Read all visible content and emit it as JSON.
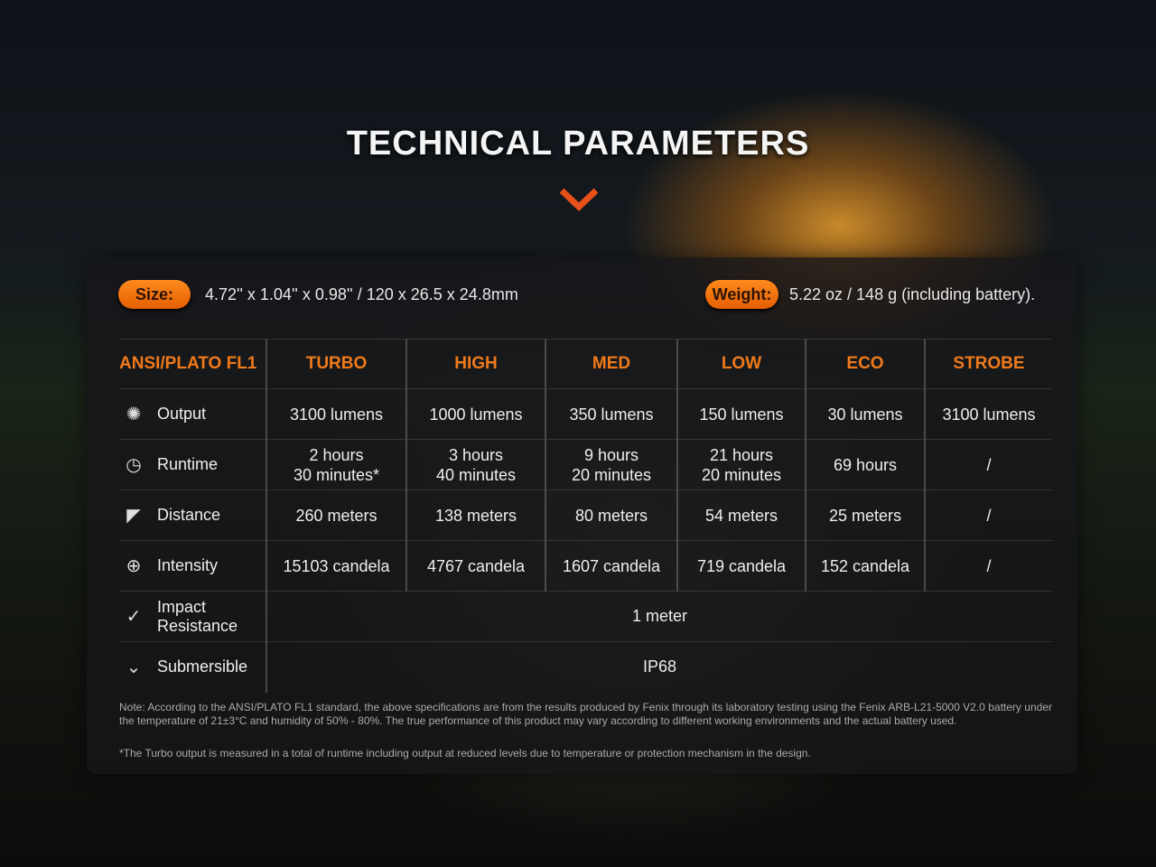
{
  "title": "TECHNICAL PARAMETERS",
  "accent": "#f07a1a",
  "size": {
    "label": "Size:",
    "value": "4.72'' x 1.04'' x 0.98'' / 120 x 26.5 x 24.8mm"
  },
  "weight": {
    "label": "Weight:",
    "value": "5.22 oz / 148 g (including battery)."
  },
  "table": {
    "headers": [
      "ANSI/PLATO FL1",
      "TURBO",
      "HIGH",
      "MED",
      "LOW",
      "ECO",
      "STROBE"
    ],
    "rows": [
      {
        "label": "Output",
        "icon": "sparkle-icon",
        "cells": [
          "3100 lumens",
          "1000 lumens",
          "350 lumens",
          "150 lumens",
          "30 lumens",
          "3100 lumens"
        ]
      },
      {
        "label": "Runtime",
        "icon": "clock-icon",
        "cells": [
          "2 hours\n30 minutes*",
          "3 hours\n40 minutes",
          "9 hours\n20 minutes",
          "21 hours\n20 minutes",
          "69 hours",
          "/"
        ]
      },
      {
        "label": "Distance",
        "icon": "beam-icon",
        "cells": [
          "260 meters",
          "138 meters",
          "80 meters",
          "54 meters",
          "25 meters",
          "/"
        ]
      },
      {
        "label": "Intensity",
        "icon": "target-icon",
        "cells": [
          "15103 candela",
          "4767 candela",
          "1607 candela",
          "719 candela",
          "152 candela",
          "/"
        ]
      },
      {
        "label": "Impact\nResistance",
        "icon": "impact-icon",
        "span": "1 meter"
      },
      {
        "label": "Submersible",
        "icon": "water-icon",
        "span": "IP68"
      }
    ]
  },
  "note": "Note: According to the ANSI/PLATO FL1 standard, the above specifications are from the results produced by Fenix through its laboratory testing using the Fenix ARB-L21-5000 V2.0 battery under the temperature of 21±3°C and humidity of 50% - 80%. The true performance of this product may vary according to different working environments and the actual battery used.",
  "footnote": "*The Turbo output is measured in a total of runtime including output at reduced levels due to temperature or protection mechanism in the design."
}
